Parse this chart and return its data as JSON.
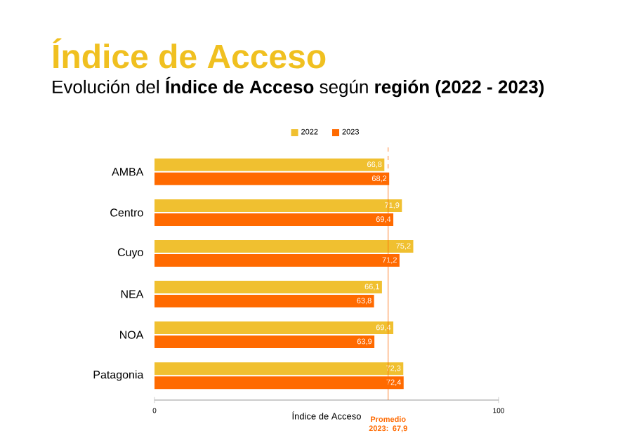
{
  "chart_data": {
    "type": "bar",
    "orientation": "horizontal",
    "title": "Índice de Acceso",
    "subtitle": "Evolución del **Índice de Acceso** según **región (2022 - 2023)**",
    "xlabel": "Índice de Acceso",
    "categories": [
      "AMBA",
      "Centro",
      "Cuyo",
      "NEA",
      "NOA",
      "Patagonia"
    ],
    "series": [
      {
        "name": "2022",
        "color": "#f0c030",
        "values": [
          66.8,
          71.9,
          75.2,
          66.1,
          69.4,
          72.3
        ],
        "value_labels": [
          "66,8",
          "71,9",
          "75,2",
          "66,1",
          "69,4",
          "72,3"
        ]
      },
      {
        "name": "2023",
        "color": "#ff6a00",
        "values": [
          68.2,
          69.4,
          71.2,
          63.8,
          63.9,
          72.4
        ],
        "value_labels": [
          "68,2",
          "69,4",
          "71,2",
          "63,8",
          "63,9",
          "72,4"
        ]
      }
    ],
    "xlim": [
      0,
      100
    ],
    "xticks": [
      0,
      100
    ],
    "legend": "top",
    "ref_lines": [
      {
        "axis": "x",
        "value": 67.9,
        "label": "Promedio 2023: 67,9",
        "color": "#ff6a00",
        "line_style": "dashed"
      }
    ]
  }
}
